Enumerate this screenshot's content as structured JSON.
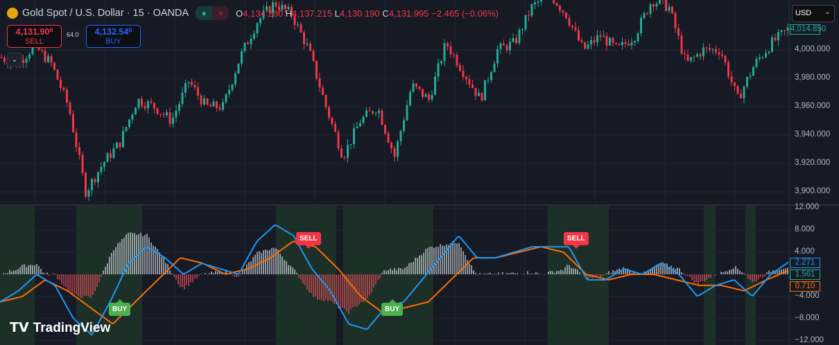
{
  "header": {
    "symbol": "Gold Spot / U.S. Dollar · 15 · OANDA",
    "open_label": "O",
    "open": "4,134.280",
    "high_label": "H",
    "high": "4,137.215",
    "low_label": "L",
    "low": "4,130.190",
    "close_label": "C",
    "close": "4,131.995",
    "change": "−2.465 (−0.06%)",
    "wave_icon": "≈"
  },
  "trade": {
    "sell_price": "4,131.90⁰",
    "sell_label": "SELL",
    "spread": "64.0",
    "buy_price": "4,132.54⁰",
    "buy_label": "BUY",
    "collapse_icon": "⌄"
  },
  "currency": {
    "value": "USD",
    "chevron": "⌄"
  },
  "brand": "TradingView",
  "colors": {
    "up": "#22ab94",
    "down": "#f23645",
    "macd": "#2196f3",
    "signal": "#ff6d00",
    "zone": "#1f3a2a"
  },
  "chart_data": [
    {
      "type": "candlestick",
      "price_axis_ticks": [
        "4,000.000",
        "3,980.000",
        "3,960.000",
        "3,940.000",
        "3,920.000",
        "3,900.000"
      ],
      "last_price": "4,014.850",
      "ylim": [
        3888,
        4048
      ],
      "approx_close_path": [
        3995,
        3990,
        4003,
        3990,
        3960,
        3900,
        3920,
        3935,
        3965,
        3960,
        3950,
        3978,
        3960,
        3960,
        3995,
        4020,
        4033,
        4025,
        4000,
        3960,
        3925,
        3950,
        3960,
        3925,
        3975,
        3965,
        4005,
        3985,
        3965,
        4000,
        4005,
        4030,
        4040,
        4025,
        4000,
        4010,
        4000,
        4010,
        4035,
        4030,
        3990,
        4000,
        4000,
        3965,
        3990,
        4005,
        4015
      ]
    },
    {
      "type": "line",
      "series": [
        {
          "key": "macd",
          "values": [
            -5,
            -3,
            0,
            -2,
            -8,
            -11,
            -5,
            2,
            5,
            3,
            0,
            2,
            1,
            0,
            6,
            9,
            7,
            1,
            -3,
            -9,
            -10,
            -6,
            -5,
            -1,
            3,
            7,
            3,
            3,
            4,
            5,
            5,
            5,
            -1,
            -1,
            1,
            0,
            2,
            0,
            -4,
            -2,
            -1,
            -4,
            0,
            2.27
          ]
        },
        {
          "key": "signal",
          "values": [
            -5,
            -4,
            -1,
            -3,
            -6,
            -9,
            -5,
            -1,
            3,
            2,
            0,
            1,
            3,
            6,
            5,
            1,
            -4,
            -7,
            -6,
            -5,
            -1,
            3,
            3,
            4,
            5,
            4,
            0,
            -1,
            0,
            0,
            -1,
            -2,
            -2,
            -3,
            -1,
            0.71
          ]
        }
      ],
      "axis_ticks": [
        "12.000",
        "8.000",
        "4.000",
        "−4.000",
        "−8.000",
        "−12.000"
      ],
      "ylim": [
        -12,
        12
      ],
      "last_values": {
        "macd": "2.271",
        "histogram": "1.561",
        "signal": "0.710"
      },
      "signals": [
        {
          "label": "BUY",
          "at": "low"
        },
        {
          "label": "SELL",
          "at": "high"
        },
        {
          "label": "BUY",
          "at": "low"
        },
        {
          "label": "SELL",
          "at": "high"
        }
      ]
    }
  ]
}
